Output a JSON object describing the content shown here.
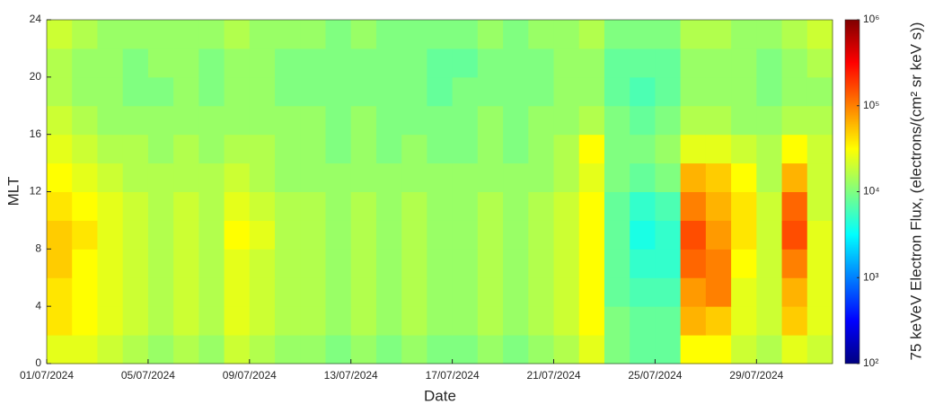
{
  "chart_data": {
    "type": "heatmap",
    "x_label": "Date",
    "y_label": "MLT",
    "colorbar_label": "75 keVeV Electron Flux, (electrons/(cm² sr keV s))",
    "categories": [
      "01/07/2024",
      null,
      null,
      null,
      "05/07/2024",
      null,
      null,
      null,
      "09/07/2024",
      null,
      null,
      null,
      "13/07/2024",
      null,
      null,
      null,
      "17/07/2024",
      null,
      null,
      null,
      "21/07/2024",
      null,
      null,
      null,
      "25/07/2024",
      null,
      null,
      null,
      "29/07/2024",
      null,
      null
    ],
    "mlt_bins": [
      0,
      2,
      4,
      6,
      8,
      10,
      12,
      14,
      16,
      18,
      20,
      22,
      24
    ],
    "ylim": [
      0,
      24
    ],
    "yticks": [
      0,
      4,
      8,
      12,
      16,
      20,
      24
    ],
    "colormap": "jet",
    "color_scale": "log",
    "clim": [
      100,
      1000000
    ],
    "cticks": [
      {
        "value": 100,
        "label": "10²"
      },
      {
        "value": 1000,
        "label": "10³"
      },
      {
        "value": 10000,
        "label": "10⁴"
      },
      {
        "value": 100000,
        "label": "10⁵"
      },
      {
        "value": 1000000,
        "label": "10⁶"
      }
    ],
    "values": [
      [
        25100,
        25100,
        20000,
        15800,
        12600,
        15800,
        12600,
        20000,
        15800,
        12600,
        12600,
        10000,
        12600,
        10000,
        12600,
        10000,
        10000,
        12600,
        10000,
        12600,
        15800,
        25100,
        10000,
        7900,
        7900,
        31600,
        31600,
        20000,
        15800,
        25100,
        20000
      ],
      [
        39800,
        31600,
        25100,
        20000,
        15800,
        20000,
        15800,
        25100,
        20000,
        15800,
        15800,
        12600,
        15800,
        12600,
        15800,
        12600,
        12600,
        15800,
        12600,
        15800,
        20000,
        31600,
        10000,
        7900,
        7900,
        63000,
        50100,
        25100,
        20000,
        50100,
        25100
      ],
      [
        39800,
        31600,
        25100,
        20000,
        15800,
        20000,
        15800,
        25100,
        20000,
        15800,
        15800,
        12600,
        15800,
        12600,
        15800,
        12600,
        12600,
        15800,
        12600,
        15800,
        20000,
        31600,
        7900,
        6300,
        6300,
        79000,
        100000,
        25100,
        20000,
        63000,
        25100
      ],
      [
        50100,
        31600,
        25100,
        20000,
        15800,
        20000,
        15800,
        25100,
        20000,
        15800,
        15800,
        12600,
        15800,
        12600,
        15800,
        12600,
        12600,
        15800,
        12600,
        15800,
        20000,
        31600,
        7900,
        5000,
        5000,
        126000,
        100000,
        31600,
        20000,
        100000,
        25100
      ],
      [
        50100,
        39800,
        25100,
        20000,
        15800,
        20000,
        15800,
        31600,
        25100,
        15800,
        15800,
        12600,
        15800,
        12600,
        15800,
        12600,
        12600,
        15800,
        12600,
        15800,
        20000,
        31600,
        7900,
        4000,
        5000,
        158000,
        79000,
        39800,
        20000,
        158000,
        25100
      ],
      [
        39800,
        31600,
        25100,
        20000,
        15800,
        20000,
        15800,
        25100,
        20000,
        15800,
        15800,
        12600,
        15800,
        12600,
        15800,
        12600,
        12600,
        15800,
        12600,
        15800,
        20000,
        31600,
        7900,
        5000,
        6300,
        100000,
        63000,
        39800,
        20000,
        126000,
        20000
      ],
      [
        31600,
        25100,
        20000,
        15800,
        15800,
        15800,
        15800,
        20000,
        15800,
        12600,
        12600,
        12600,
        12600,
        12600,
        12600,
        12600,
        12600,
        12600,
        12600,
        12600,
        15800,
        25100,
        10000,
        7900,
        10000,
        63000,
        50100,
        31600,
        15800,
        63000,
        20000
      ],
      [
        25100,
        20000,
        15800,
        15800,
        12600,
        15800,
        12600,
        15800,
        15800,
        12600,
        12600,
        10000,
        12600,
        10000,
        12600,
        10000,
        10000,
        12600,
        10000,
        12600,
        15800,
        31600,
        10000,
        10000,
        12600,
        25100,
        25100,
        20000,
        15800,
        31600,
        20000
      ],
      [
        20000,
        15800,
        12600,
        12600,
        12600,
        12600,
        12600,
        12600,
        12600,
        12600,
        12600,
        10000,
        12600,
        10000,
        10000,
        10000,
        10000,
        12600,
        10000,
        12600,
        12600,
        15800,
        10000,
        7900,
        10000,
        15800,
        15800,
        12600,
        12600,
        15800,
        15800
      ],
      [
        15800,
        12600,
        12600,
        10000,
        10000,
        12600,
        10000,
        12600,
        12600,
        10000,
        10000,
        10000,
        10000,
        10000,
        10000,
        7900,
        10000,
        10000,
        10000,
        10000,
        12600,
        12600,
        7900,
        6300,
        7900,
        12600,
        12600,
        12600,
        10000,
        12600,
        12600
      ],
      [
        15800,
        12600,
        12600,
        10000,
        12600,
        12600,
        10000,
        12600,
        12600,
        10000,
        10000,
        10000,
        10000,
        10000,
        10000,
        7900,
        7900,
        10000,
        10000,
        10000,
        12600,
        12600,
        7900,
        7900,
        7900,
        12600,
        12600,
        12600,
        10000,
        12600,
        15800
      ],
      [
        20000,
        15800,
        12600,
        12600,
        12600,
        12600,
        12600,
        15800,
        12600,
        12600,
        12600,
        10000,
        12600,
        10000,
        10000,
        10000,
        10000,
        12600,
        10000,
        12600,
        12600,
        15800,
        10000,
        10000,
        10000,
        15800,
        15800,
        12600,
        12600,
        15800,
        20000
      ]
    ]
  }
}
